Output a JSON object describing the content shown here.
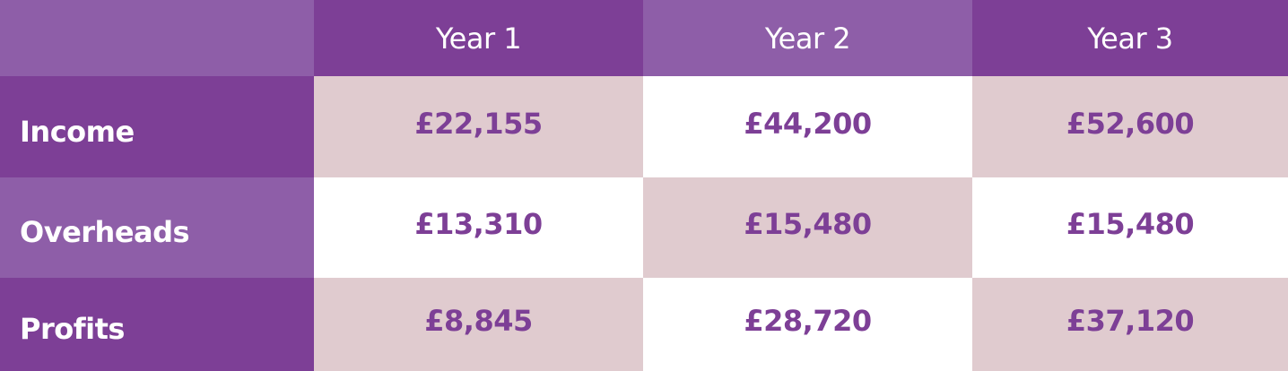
{
  "table": {
    "columns": [
      "Year 1",
      "Year 2",
      "Year 3"
    ],
    "rows": [
      {
        "label": "Income",
        "cells": [
          "£22,155",
          "£44,200",
          "£52,600"
        ]
      },
      {
        "label": "Overheads",
        "cells": [
          "£13,310",
          "£15,480",
          "£15,480"
        ]
      },
      {
        "label": "Profits",
        "cells": [
          "£8,845",
          "£28,720",
          "£37,120"
        ]
      }
    ]
  }
}
